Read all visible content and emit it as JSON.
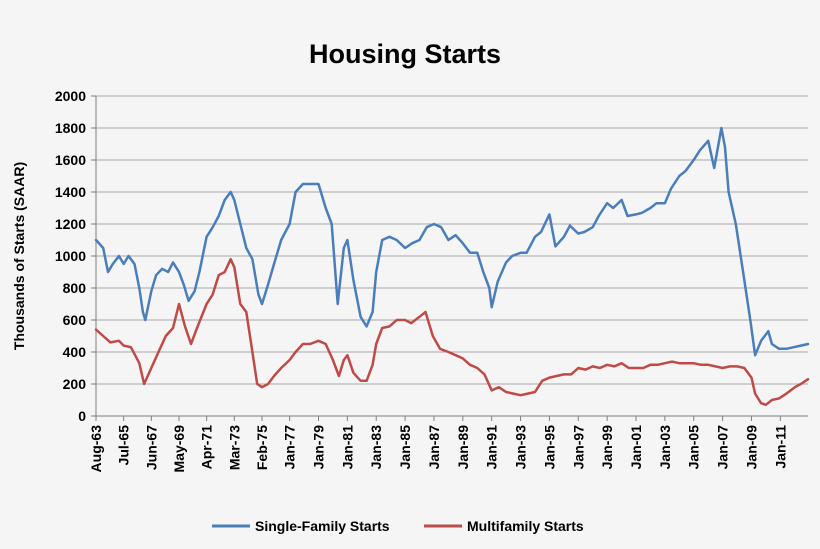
{
  "chart_data": {
    "type": "line",
    "title": "Housing Starts",
    "xlabel": "",
    "ylabel": "Thousands of Starts (SAAR)",
    "ylim": [
      0,
      2000
    ],
    "yticks": [
      0,
      200,
      400,
      600,
      800,
      1000,
      1200,
      1400,
      1600,
      1800,
      2000
    ],
    "xlim": [
      "1963-08",
      "2012-12"
    ],
    "xtick_labels": [
      "Aug-63",
      "Jul-65",
      "Jun-67",
      "May-69",
      "Apr-71",
      "Mar-73",
      "Feb-75",
      "Jan-77",
      "Jan-79",
      "Jan-81",
      "Jan-83",
      "Jan-85",
      "Jan-87",
      "Jan-89",
      "Jan-91",
      "Jan-93",
      "Jan-95",
      "Jan-97",
      "Jan-99",
      "Jan-01",
      "Jan-03",
      "Jan-05",
      "Jan-07",
      "Jan-09",
      "Jan-11"
    ],
    "xtick_dates": [
      "1963-08",
      "1965-07",
      "1967-06",
      "1969-05",
      "1971-04",
      "1973-03",
      "1975-02",
      "1977-01",
      "1979-01",
      "1981-01",
      "1983-01",
      "1985-01",
      "1987-01",
      "1989-01",
      "1991-01",
      "1993-01",
      "1995-01",
      "1997-01",
      "1999-01",
      "2001-01",
      "2003-01",
      "2005-01",
      "2007-01",
      "2009-01",
      "2011-01"
    ],
    "grid": "horizontal",
    "legend": "bottom",
    "series": [
      {
        "name": "Single-Family Starts",
        "color": "#4a7ebb",
        "points": [
          [
            "1963-08",
            1100
          ],
          [
            "1964-02",
            1050
          ],
          [
            "1964-06",
            900
          ],
          [
            "1964-10",
            950
          ],
          [
            "1965-03",
            1000
          ],
          [
            "1965-07",
            950
          ],
          [
            "1965-11",
            1000
          ],
          [
            "1966-04",
            950
          ],
          [
            "1966-08",
            800
          ],
          [
            "1966-11",
            650
          ],
          [
            "1967-01",
            600
          ],
          [
            "1967-06",
            780
          ],
          [
            "1967-10",
            880
          ],
          [
            "1968-03",
            920
          ],
          [
            "1968-08",
            900
          ],
          [
            "1968-12",
            960
          ],
          [
            "1969-05",
            900
          ],
          [
            "1969-09",
            820
          ],
          [
            "1970-01",
            720
          ],
          [
            "1970-06",
            780
          ],
          [
            "1970-10",
            900
          ],
          [
            "1971-04",
            1120
          ],
          [
            "1971-09",
            1180
          ],
          [
            "1972-02",
            1250
          ],
          [
            "1972-07",
            1350
          ],
          [
            "1972-12",
            1400
          ],
          [
            "1973-03",
            1350
          ],
          [
            "1973-08",
            1200
          ],
          [
            "1974-01",
            1050
          ],
          [
            "1974-06",
            980
          ],
          [
            "1974-11",
            760
          ],
          [
            "1975-02",
            700
          ],
          [
            "1975-07",
            820
          ],
          [
            "1975-12",
            950
          ],
          [
            "1976-06",
            1100
          ],
          [
            "1977-01",
            1200
          ],
          [
            "1977-06",
            1400
          ],
          [
            "1977-12",
            1450
          ],
          [
            "1978-06",
            1450
          ],
          [
            "1979-01",
            1450
          ],
          [
            "1979-07",
            1300
          ],
          [
            "1979-12",
            1200
          ],
          [
            "1980-05",
            700
          ],
          [
            "1980-10",
            1050
          ],
          [
            "1981-01",
            1100
          ],
          [
            "1981-06",
            850
          ],
          [
            "1981-12",
            620
          ],
          [
            "1982-05",
            560
          ],
          [
            "1982-10",
            650
          ],
          [
            "1983-01",
            900
          ],
          [
            "1983-06",
            1100
          ],
          [
            "1983-12",
            1120
          ],
          [
            "1984-06",
            1100
          ],
          [
            "1985-01",
            1050
          ],
          [
            "1985-07",
            1080
          ],
          [
            "1986-01",
            1100
          ],
          [
            "1986-07",
            1180
          ],
          [
            "1987-01",
            1200
          ],
          [
            "1987-07",
            1180
          ],
          [
            "1988-01",
            1100
          ],
          [
            "1988-07",
            1130
          ],
          [
            "1989-01",
            1080
          ],
          [
            "1989-07",
            1020
          ],
          [
            "1990-01",
            1020
          ],
          [
            "1990-06",
            900
          ],
          [
            "1990-11",
            800
          ],
          [
            "1991-01",
            680
          ],
          [
            "1991-06",
            840
          ],
          [
            "1992-01",
            960
          ],
          [
            "1992-06",
            1000
          ],
          [
            "1993-01",
            1020
          ],
          [
            "1993-06",
            1020
          ],
          [
            "1994-01",
            1120
          ],
          [
            "1994-06",
            1150
          ],
          [
            "1995-01",
            1260
          ],
          [
            "1995-06",
            1060
          ],
          [
            "1996-01",
            1120
          ],
          [
            "1996-06",
            1190
          ],
          [
            "1997-01",
            1140
          ],
          [
            "1997-06",
            1150
          ],
          [
            "1998-01",
            1180
          ],
          [
            "1998-06",
            1250
          ],
          [
            "1999-01",
            1330
          ],
          [
            "1999-06",
            1300
          ],
          [
            "2000-01",
            1350
          ],
          [
            "2000-06",
            1250
          ],
          [
            "2001-01",
            1260
          ],
          [
            "2001-06",
            1270
          ],
          [
            "2002-01",
            1300
          ],
          [
            "2002-06",
            1330
          ],
          [
            "2003-01",
            1330
          ],
          [
            "2003-06",
            1420
          ],
          [
            "2004-01",
            1500
          ],
          [
            "2004-06",
            1530
          ],
          [
            "2005-01",
            1600
          ],
          [
            "2005-06",
            1660
          ],
          [
            "2006-01",
            1720
          ],
          [
            "2006-06",
            1550
          ],
          [
            "2006-12",
            1800
          ],
          [
            "2007-03",
            1680
          ],
          [
            "2007-06",
            1400
          ],
          [
            "2007-12",
            1200
          ],
          [
            "2008-06",
            900
          ],
          [
            "2008-12",
            600
          ],
          [
            "2009-04",
            380
          ],
          [
            "2009-09",
            470
          ],
          [
            "2010-03",
            530
          ],
          [
            "2010-06",
            450
          ],
          [
            "2010-12",
            420
          ],
          [
            "2011-06",
            420
          ],
          [
            "2012-06",
            440
          ],
          [
            "2012-12",
            450
          ]
        ]
      },
      {
        "name": "Multifamily Starts",
        "color": "#be4b48",
        "points": [
          [
            "1963-08",
            540
          ],
          [
            "1964-02",
            500
          ],
          [
            "1964-08",
            460
          ],
          [
            "1965-03",
            470
          ],
          [
            "1965-07",
            440
          ],
          [
            "1966-01",
            430
          ],
          [
            "1966-08",
            330
          ],
          [
            "1966-12",
            200
          ],
          [
            "1967-06",
            300
          ],
          [
            "1967-12",
            400
          ],
          [
            "1968-06",
            500
          ],
          [
            "1968-12",
            550
          ],
          [
            "1969-05",
            700
          ],
          [
            "1969-10",
            560
          ],
          [
            "1970-03",
            450
          ],
          [
            "1970-08",
            550
          ],
          [
            "1971-04",
            700
          ],
          [
            "1971-09",
            760
          ],
          [
            "1972-02",
            880
          ],
          [
            "1972-07",
            900
          ],
          [
            "1972-12",
            980
          ],
          [
            "1973-03",
            930
          ],
          [
            "1973-08",
            700
          ],
          [
            "1974-01",
            650
          ],
          [
            "1974-06",
            400
          ],
          [
            "1974-10",
            200
          ],
          [
            "1975-02",
            180
          ],
          [
            "1975-07",
            200
          ],
          [
            "1975-12",
            250
          ],
          [
            "1976-06",
            300
          ],
          [
            "1977-01",
            350
          ],
          [
            "1977-06",
            400
          ],
          [
            "1977-12",
            450
          ],
          [
            "1978-06",
            450
          ],
          [
            "1979-01",
            470
          ],
          [
            "1979-07",
            450
          ],
          [
            "1980-01",
            350
          ],
          [
            "1980-06",
            250
          ],
          [
            "1980-10",
            350
          ],
          [
            "1981-01",
            380
          ],
          [
            "1981-06",
            270
          ],
          [
            "1981-12",
            220
          ],
          [
            "1982-05",
            220
          ],
          [
            "1982-10",
            320
          ],
          [
            "1983-01",
            450
          ],
          [
            "1983-06",
            550
          ],
          [
            "1983-12",
            560
          ],
          [
            "1984-06",
            600
          ],
          [
            "1985-01",
            600
          ],
          [
            "1985-06",
            580
          ],
          [
            "1986-01",
            620
          ],
          [
            "1986-06",
            650
          ],
          [
            "1986-12",
            500
          ],
          [
            "1987-06",
            420
          ],
          [
            "1988-01",
            400
          ],
          [
            "1988-07",
            380
          ],
          [
            "1989-01",
            360
          ],
          [
            "1989-07",
            320
          ],
          [
            "1990-01",
            300
          ],
          [
            "1990-07",
            260
          ],
          [
            "1991-01",
            160
          ],
          [
            "1991-07",
            180
          ],
          [
            "1992-01",
            150
          ],
          [
            "1992-07",
            140
          ],
          [
            "1993-01",
            130
          ],
          [
            "1993-07",
            140
          ],
          [
            "1994-01",
            150
          ],
          [
            "1994-07",
            220
          ],
          [
            "1995-01",
            240
          ],
          [
            "1995-07",
            250
          ],
          [
            "1996-01",
            260
          ],
          [
            "1996-07",
            260
          ],
          [
            "1997-01",
            300
          ],
          [
            "1997-07",
            290
          ],
          [
            "1998-01",
            310
          ],
          [
            "1998-07",
            300
          ],
          [
            "1999-01",
            320
          ],
          [
            "1999-07",
            310
          ],
          [
            "2000-01",
            330
          ],
          [
            "2000-07",
            300
          ],
          [
            "2001-01",
            300
          ],
          [
            "2001-07",
            300
          ],
          [
            "2002-01",
            320
          ],
          [
            "2002-07",
            320
          ],
          [
            "2003-01",
            330
          ],
          [
            "2003-07",
            340
          ],
          [
            "2004-01",
            330
          ],
          [
            "2004-07",
            330
          ],
          [
            "2005-01",
            330
          ],
          [
            "2005-07",
            320
          ],
          [
            "2006-01",
            320
          ],
          [
            "2006-07",
            310
          ],
          [
            "2007-01",
            300
          ],
          [
            "2007-07",
            310
          ],
          [
            "2008-01",
            310
          ],
          [
            "2008-07",
            300
          ],
          [
            "2009-01",
            240
          ],
          [
            "2009-04",
            140
          ],
          [
            "2009-09",
            80
          ],
          [
            "2010-01",
            70
          ],
          [
            "2010-06",
            100
          ],
          [
            "2010-12",
            110
          ],
          [
            "2011-06",
            140
          ],
          [
            "2012-01",
            180
          ],
          [
            "2012-06",
            200
          ],
          [
            "2012-12",
            230
          ]
        ]
      }
    ]
  }
}
